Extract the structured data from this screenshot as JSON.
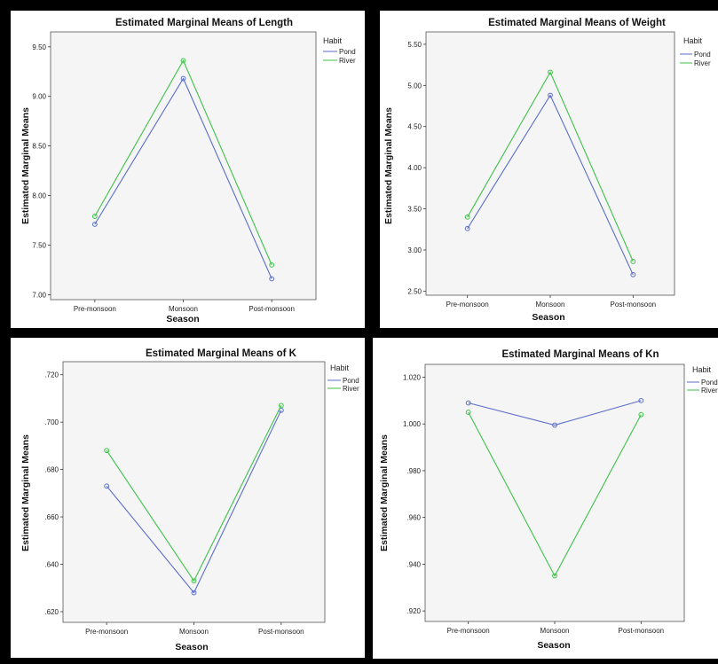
{
  "chart_data": [
    {
      "type": "line",
      "title": "Estimated Marginal Means of Length",
      "xlabel": "Season",
      "ylabel": "Estimated Marginal Means",
      "categories": [
        "Pre-monsoon",
        "Monsoon",
        "Post-monsoon"
      ],
      "ylim": [
        6.95,
        9.65
      ],
      "yticks": [
        7.0,
        7.5,
        8.0,
        8.5,
        9.0,
        9.5
      ],
      "ytick_labels": [
        "7.00",
        "7.50",
        "8.00",
        "8.50",
        "9.00",
        "9.50"
      ],
      "legend_title": "Habit",
      "legend_position": "right",
      "grid": false,
      "series": [
        {
          "name": "Pond",
          "color": "#5a6ec8",
          "values": [
            7.71,
            9.18,
            7.16
          ]
        },
        {
          "name": "River",
          "color": "#3ec24a",
          "values": [
            7.79,
            9.36,
            7.3
          ]
        }
      ]
    },
    {
      "type": "line",
      "title": "Estimated Marginal Means of Weight",
      "xlabel": "Season",
      "ylabel": "Estimated Marginal Means",
      "categories": [
        "Pre-monsoon",
        "Monsoon",
        "Post-monsoon"
      ],
      "ylim": [
        2.45,
        5.65
      ],
      "yticks": [
        2.5,
        3.0,
        3.5,
        4.0,
        4.5,
        5.0,
        5.5
      ],
      "ytick_labels": [
        "2.50",
        "3.00",
        "3.50",
        "4.00",
        "4.50",
        "5.00",
        "5.50"
      ],
      "legend_title": "Habit",
      "legend_position": "right",
      "grid": false,
      "series": [
        {
          "name": "Pond",
          "color": "#5a6ec8",
          "values": [
            3.26,
            4.88,
            2.7
          ]
        },
        {
          "name": "River",
          "color": "#3ec24a",
          "values": [
            3.4,
            5.16,
            2.86
          ]
        }
      ]
    },
    {
      "type": "line",
      "title": "Estimated Marginal Means of K",
      "xlabel": "Season",
      "ylabel": "Estimated Marginal Means",
      "categories": [
        "Pre-monsoon",
        "Monsoon",
        "Post-monsoon"
      ],
      "ylim": [
        0.6155,
        0.7255
      ],
      "yticks": [
        0.62,
        0.64,
        0.66,
        0.68,
        0.7,
        0.72
      ],
      "ytick_labels": [
        ".620",
        ".640",
        ".660",
        ".680",
        ".700",
        ".720"
      ],
      "legend_title": "Habit",
      "legend_position": "right",
      "grid": false,
      "series": [
        {
          "name": "Pond",
          "color": "#5a6ec8",
          "values": [
            0.673,
            0.628,
            0.705
          ]
        },
        {
          "name": "River",
          "color": "#3ec24a",
          "values": [
            0.688,
            0.633,
            0.707
          ]
        }
      ]
    },
    {
      "type": "line",
      "title": "Estimated Marginal Means of Kn",
      "xlabel": "Season",
      "ylabel": "Estimated Marginal Means",
      "categories": [
        "Pre-monsoon",
        "Monsoon",
        "Post-monsoon"
      ],
      "ylim": [
        0.9155,
        1.0255
      ],
      "yticks": [
        0.92,
        0.94,
        0.96,
        0.98,
        1.0,
        1.02
      ],
      "ytick_labels": [
        ".920",
        ".940",
        ".960",
        ".980",
        "1.000",
        "1.020"
      ],
      "legend_title": "Habit",
      "legend_position": "right",
      "grid": false,
      "series": [
        {
          "name": "Pond",
          "color": "#5a6ec8",
          "values": [
            1.009,
            0.9995,
            1.01
          ]
        },
        {
          "name": "River",
          "color": "#3ec24a",
          "values": [
            1.005,
            0.935,
            1.004
          ]
        }
      ]
    }
  ]
}
